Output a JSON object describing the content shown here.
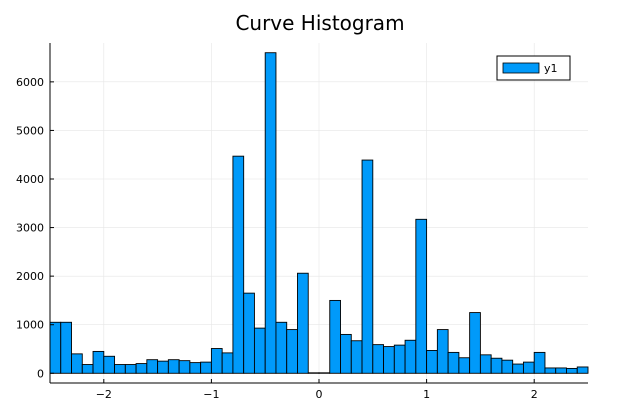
{
  "chart_data": {
    "type": "bar",
    "title": "Curve Histogram",
    "xlabel": "",
    "ylabel": "",
    "xlim": [
      -2.5,
      2.5
    ],
    "ylim": [
      -200,
      6800
    ],
    "bin_width": 0.1,
    "bin_start": -2.5,
    "values": [
      1050,
      1050,
      400,
      180,
      450,
      350,
      180,
      180,
      200,
      280,
      250,
      280,
      260,
      220,
      230,
      510,
      420,
      4470,
      1650,
      930,
      6600,
      1050,
      900,
      2060,
      10,
      10,
      1500,
      800,
      670,
      4390,
      590,
      550,
      580,
      680,
      3170,
      470,
      900,
      430,
      320,
      1250,
      380,
      310,
      270,
      190,
      230,
      430,
      110,
      110,
      100,
      130
    ],
    "series": [
      {
        "name": "y1",
        "color": "#009AFA"
      }
    ],
    "xticks": [
      -2,
      -1,
      0,
      1,
      2
    ],
    "xtick_labels": [
      "−2",
      "−1",
      "0",
      "1",
      "2"
    ],
    "yticks": [
      0,
      1000,
      2000,
      3000,
      4000,
      5000,
      6000
    ],
    "ytick_labels": [
      "0",
      "1000",
      "2000",
      "3000",
      "4000",
      "5000",
      "6000"
    ],
    "grid": true,
    "legend_position": "top-right"
  }
}
